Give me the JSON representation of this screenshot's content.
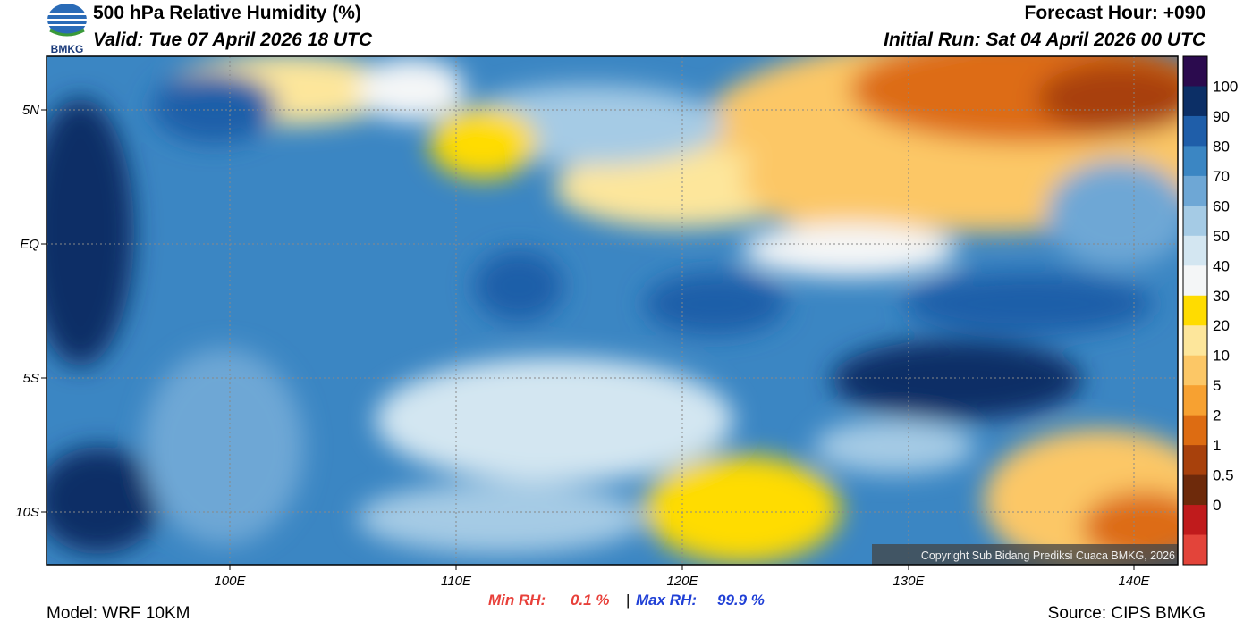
{
  "header": {
    "title": "500 hPa Relative Humidity (%)",
    "valid": "Valid: Tue 07 April 2026 18 UTC",
    "forecast_hour": "Forecast Hour: +090",
    "initial_run": "Initial Run: Sat 04 April 2026 00 UTC",
    "logo": "BMKG"
  },
  "map": {
    "lat_labels": [
      "5N",
      "EQ",
      "5S",
      "10S"
    ],
    "lon_labels": [
      "100E",
      "110E",
      "120E",
      "130E",
      "140E"
    ],
    "copyright": "Copyright Sub Bidang Prediksi Cuaca BMKG, 2026"
  },
  "colorbar": {
    "labels": [
      "100",
      "90",
      "80",
      "70",
      "60",
      "50",
      "40",
      "30",
      "20",
      "10",
      "5",
      "2",
      "1",
      "0.5",
      "0"
    ],
    "colors": [
      "#2b0b4e",
      "#0c2f66",
      "#1f5ea9",
      "#3b86c3",
      "#6ea7d5",
      "#a5cbe5",
      "#d3e6f1",
      "#f4f6f7",
      "#ffdc00",
      "#fde69b",
      "#fcc766",
      "#f7a131",
      "#dd6c12",
      "#a8410c",
      "#6e2a0b",
      "#c01b1c",
      "#e3443a"
    ]
  },
  "footer": {
    "model": "Model: WRF 10KM",
    "min_label": "Min RH:",
    "min_value": "0.1 %",
    "separator": "|",
    "max_label": "Max RH:",
    "max_value": "99.9 %",
    "source": "Source: CIPS BMKG"
  }
}
